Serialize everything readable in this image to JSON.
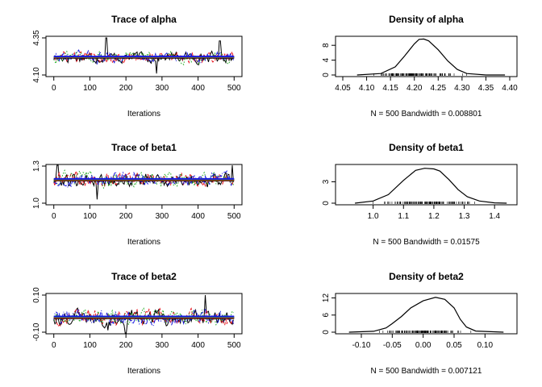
{
  "colors": {
    "frame": "#000000",
    "chain1": "#000000",
    "chain2": "#e8101a",
    "chain3": "#1faa1f",
    "chain4": "#1818e0"
  },
  "chart_data": [
    {
      "type": "line",
      "panel": "trace",
      "title": "Trace of alpha",
      "xlabel": "Iterations",
      "ylabel": "",
      "xlim": [
        0,
        500
      ],
      "ylim": [
        4.1,
        4.35
      ],
      "x_ticks": [
        "0",
        "100",
        "200",
        "300",
        "400",
        "500"
      ],
      "y_ticks": [
        "4.10",
        "4.35"
      ],
      "center": 4.22,
      "spread": 0.035,
      "spikes": [
        {
          "x": 145,
          "y": 4.35
        },
        {
          "x": 285,
          "y": 4.11
        },
        {
          "x": 460,
          "y": 4.33
        }
      ],
      "series": [
        {
          "color": "#000000"
        },
        {
          "color": "#e8101a"
        },
        {
          "color": "#1faa1f"
        },
        {
          "color": "#1818e0"
        }
      ]
    },
    {
      "type": "line",
      "panel": "density",
      "title": "Density of alpha",
      "xlabel": "N = 500   Bandwidth = 0.008801",
      "ylabel": "",
      "xlim": [
        4.05,
        4.4
      ],
      "ylim": [
        0,
        10
      ],
      "x_ticks": [
        "4.05",
        "4.10",
        "4.15",
        "4.20",
        "4.25",
        "4.30",
        "4.35",
        "4.40"
      ],
      "y_ticks": [
        "0",
        "4",
        "8"
      ],
      "curve": [
        [
          4.08,
          0
        ],
        [
          4.13,
          0.4
        ],
        [
          4.16,
          2.2
        ],
        [
          4.18,
          5.2
        ],
        [
          4.2,
          8.4
        ],
        [
          4.21,
          9.6
        ],
        [
          4.22,
          9.7
        ],
        [
          4.23,
          9.2
        ],
        [
          4.25,
          6.8
        ],
        [
          4.27,
          3.8
        ],
        [
          4.29,
          1.5
        ],
        [
          4.31,
          0.4
        ],
        [
          4.35,
          0
        ],
        [
          4.39,
          0
        ]
      ],
      "rug": [
        4.09,
        4.33
      ]
    },
    {
      "type": "line",
      "panel": "trace",
      "title": "Trace of beta1",
      "xlabel": "Iterations",
      "ylabel": "",
      "xlim": [
        0,
        500
      ],
      "ylim": [
        1.0,
        1.3
      ],
      "x_ticks": [
        "0",
        "100",
        "200",
        "300",
        "400",
        "500"
      ],
      "y_ticks": [
        "1.0",
        "1.3"
      ],
      "center": 1.19,
      "spread": 0.055,
      "spikes": [
        {
          "x": 10,
          "y": 1.38
        },
        {
          "x": 120,
          "y": 1.03
        },
        {
          "x": 495,
          "y": 1.36
        }
      ],
      "series": [
        {
          "color": "#000000"
        },
        {
          "color": "#e8101a"
        },
        {
          "color": "#1faa1f"
        },
        {
          "color": "#1818e0"
        }
      ]
    },
    {
      "type": "line",
      "panel": "density",
      "title": "Density of beta1",
      "xlabel": "N = 500   Bandwidth = 0.01575",
      "ylabel": "",
      "xlim": [
        0.9,
        1.45
      ],
      "ylim": [
        0,
        5.2
      ],
      "x_ticks": [
        "1.0",
        "1.1",
        "1.2",
        "1.3",
        "1.4"
      ],
      "y_ticks": [
        "0",
        "3"
      ],
      "curve": [
        [
          0.94,
          0
        ],
        [
          1.0,
          0.3
        ],
        [
          1.05,
          1.2
        ],
        [
          1.1,
          3.2
        ],
        [
          1.14,
          4.6
        ],
        [
          1.17,
          4.9
        ],
        [
          1.2,
          4.8
        ],
        [
          1.22,
          4.5
        ],
        [
          1.25,
          3.3
        ],
        [
          1.28,
          1.9
        ],
        [
          1.31,
          0.9
        ],
        [
          1.35,
          0.3
        ],
        [
          1.4,
          0.05
        ],
        [
          1.44,
          0
        ]
      ],
      "rug": [
        0.97,
        1.38
      ]
    },
    {
      "type": "line",
      "panel": "trace",
      "title": "Trace of beta2",
      "xlabel": "Iterations",
      "ylabel": "",
      "xlim": [
        0,
        500
      ],
      "ylim": [
        -0.1,
        0.1
      ],
      "x_ticks": [
        "0",
        "100",
        "200",
        "300",
        "400",
        "500"
      ],
      "y_ticks": [
        "-0.10",
        "0.10"
      ],
      "center": -0.02,
      "spread": 0.04,
      "spikes": [
        {
          "x": 200,
          "y": -0.12
        },
        {
          "x": 420,
          "y": 0.1
        },
        {
          "x": 150,
          "y": -0.09
        }
      ],
      "series": [
        {
          "color": "#000000"
        },
        {
          "color": "#e8101a"
        },
        {
          "color": "#1faa1f"
        },
        {
          "color": "#1818e0"
        }
      ]
    },
    {
      "type": "line",
      "panel": "density",
      "title": "Density of beta2",
      "xlabel": "N = 500   Bandwidth = 0.007121",
      "ylabel": "",
      "xlim": [
        -0.13,
        0.14
      ],
      "ylim": [
        0,
        13
      ],
      "x_ticks": [
        "-0.10",
        "-0.05",
        "0.00",
        "0.05",
        "0.10"
      ],
      "y_ticks": [
        "0",
        "6",
        "12"
      ],
      "curve": [
        [
          -0.12,
          0
        ],
        [
          -0.08,
          0.3
        ],
        [
          -0.06,
          1.5
        ],
        [
          -0.05,
          3.0
        ],
        [
          -0.035,
          5.5
        ],
        [
          -0.02,
          8.5
        ],
        [
          0.0,
          11.0
        ],
        [
          0.02,
          12.2
        ],
        [
          0.035,
          11.5
        ],
        [
          0.05,
          8.5
        ],
        [
          0.06,
          4.5
        ],
        [
          0.07,
          1.8
        ],
        [
          0.085,
          0.4
        ],
        [
          0.13,
          0
        ]
      ],
      "rug": [
        -0.09,
        0.09
      ]
    }
  ]
}
